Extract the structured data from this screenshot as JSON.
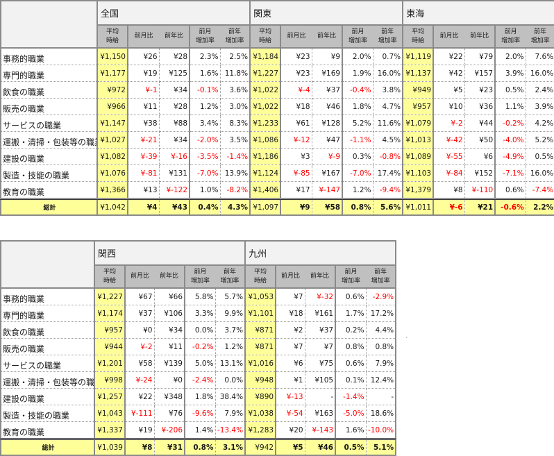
{
  "sub_headers": {
    "avg": "平均\n時給",
    "mom": "前月比",
    "yoy": "前年比",
    "mom_rate": "前月\n増加率",
    "yoy_rate": "前年\n増加率"
  },
  "row_labels": [
    "事務的職業",
    "専門的職業",
    "飲食の職業",
    "販売の職業",
    "サービスの職業",
    "運搬・清掃・包装等の職業",
    "建設の職業",
    "製造・技能の職業",
    "教育の職業"
  ],
  "total_label": "総計",
  "colors": {
    "highlight": "#ffff99",
    "negative": "#ff0000",
    "header_gray": "#c0c0c0",
    "region_bg": "#f2f2f2"
  },
  "table_top": {
    "regions": [
      {
        "name": "全国",
        "rows": [
          [
            "¥1,150",
            "¥26",
            "¥28",
            "2.3%",
            "2.5%"
          ],
          [
            "¥1,177",
            "¥19",
            "¥125",
            "1.6%",
            "11.8%"
          ],
          [
            "¥972",
            "¥-1",
            "¥34",
            "-0.1%",
            "3.6%"
          ],
          [
            "¥966",
            "¥11",
            "¥28",
            "1.2%",
            "3.0%"
          ],
          [
            "¥1,147",
            "¥38",
            "¥88",
            "3.4%",
            "8.3%"
          ],
          [
            "¥1,027",
            "¥-21",
            "¥34",
            "-2.0%",
            "3.5%"
          ],
          [
            "¥1,082",
            "¥-39",
            "¥-16",
            "-3.5%",
            "-1.4%"
          ],
          [
            "¥1,076",
            "¥-81",
            "¥131",
            "-7.0%",
            "13.9%"
          ],
          [
            "¥1,366",
            "¥13",
            "¥-122",
            "1.0%",
            "-8.2%"
          ]
        ],
        "total": [
          "¥1,042",
          "¥4",
          "¥43",
          "0.4%",
          "4.3%"
        ]
      },
      {
        "name": "関東",
        "rows": [
          [
            "¥1,184",
            "¥23",
            "¥9",
            "2.0%",
            "0.7%"
          ],
          [
            "¥1,227",
            "¥23",
            "¥169",
            "1.9%",
            "16.0%"
          ],
          [
            "¥1,022",
            "¥-4",
            "¥37",
            "-0.4%",
            "3.8%"
          ],
          [
            "¥1,022",
            "¥18",
            "¥46",
            "1.8%",
            "4.7%"
          ],
          [
            "¥1,233",
            "¥61",
            "¥128",
            "5.2%",
            "11.6%"
          ],
          [
            "¥1,086",
            "¥-12",
            "¥47",
            "-1.1%",
            "4.5%"
          ],
          [
            "¥1,186",
            "¥3",
            "¥-9",
            "0.3%",
            "-0.8%"
          ],
          [
            "¥1,124",
            "¥-85",
            "¥167",
            "-7.0%",
            "17.4%"
          ],
          [
            "¥1,406",
            "¥17",
            "¥-147",
            "1.2%",
            "-9.4%"
          ]
        ],
        "total": [
          "¥1,097",
          "¥9",
          "¥58",
          "0.8%",
          "5.6%"
        ]
      },
      {
        "name": "東海",
        "rows": [
          [
            "¥1,119",
            "¥22",
            "¥79",
            "2.0%",
            "7.6%"
          ],
          [
            "¥1,137",
            "¥42",
            "¥157",
            "3.9%",
            "16.0%"
          ],
          [
            "¥949",
            "¥5",
            "¥23",
            "0.5%",
            "2.4%"
          ],
          [
            "¥957",
            "¥10",
            "¥36",
            "1.1%",
            "3.9%"
          ],
          [
            "¥1,079",
            "¥-2",
            "¥44",
            "-0.2%",
            "4.2%"
          ],
          [
            "¥1,013",
            "¥-42",
            "¥50",
            "-4.0%",
            "5.2%"
          ],
          [
            "¥1,089",
            "¥-55",
            "¥6",
            "-4.9%",
            "0.5%"
          ],
          [
            "¥1,103",
            "¥-84",
            "¥152",
            "-7.1%",
            "16.0%"
          ],
          [
            "¥1,379",
            "¥8",
            "¥-110",
            "0.6%",
            "-7.4%"
          ]
        ],
        "total": [
          "¥1,011",
          "¥-6",
          "¥21",
          "-0.6%",
          "2.2%"
        ]
      }
    ]
  },
  "table_bottom": {
    "regions": [
      {
        "name": "関西",
        "rows": [
          [
            "¥1,227",
            "¥67",
            "¥66",
            "5.8%",
            "5.7%"
          ],
          [
            "¥1,174",
            "¥37",
            "¥106",
            "3.3%",
            "9.9%"
          ],
          [
            "¥957",
            "¥0",
            "¥34",
            "0.0%",
            "3.7%"
          ],
          [
            "¥944",
            "¥-2",
            "¥11",
            "-0.2%",
            "1.2%"
          ],
          [
            "¥1,201",
            "¥58",
            "¥139",
            "5.0%",
            "13.1%"
          ],
          [
            "¥998",
            "¥-24",
            "¥0",
            "-2.4%",
            "0.0%"
          ],
          [
            "¥1,257",
            "¥22",
            "¥348",
            "1.8%",
            "38.4%"
          ],
          [
            "¥1,043",
            "¥-111",
            "¥76",
            "-9.6%",
            "7.9%"
          ],
          [
            "¥1,337",
            "¥19",
            "¥-206",
            "1.4%",
            "-13.4%"
          ]
        ],
        "total": [
          "¥1,039",
          "¥8",
          "¥31",
          "0.8%",
          "3.1%"
        ]
      },
      {
        "name": "九州",
        "rows": [
          [
            "¥1,053",
            "¥7",
            "¥-32",
            "0.6%",
            "-2.9%"
          ],
          [
            "¥1,101",
            "¥18",
            "¥161",
            "1.7%",
            "17.2%"
          ],
          [
            "¥871",
            "¥2",
            "¥37",
            "0.2%",
            "4.4%"
          ],
          [
            "¥871",
            "¥7",
            "¥7",
            "0.8%",
            "0.8%"
          ],
          [
            "¥1,016",
            "¥6",
            "¥75",
            "0.6%",
            "7.9%"
          ],
          [
            "¥948",
            "¥1",
            "¥105",
            "0.1%",
            "12.4%"
          ],
          [
            "¥890",
            "¥-13",
            "-",
            "-1.4%",
            "-"
          ],
          [
            "¥1,038",
            "¥-54",
            "¥163",
            "-5.0%",
            "18.6%"
          ],
          [
            "¥1,283",
            "¥20",
            "¥-143",
            "1.6%",
            "-10.0%"
          ]
        ],
        "total": [
          "¥942",
          "¥5",
          "¥46",
          "0.5%",
          "5.1%"
        ]
      }
    ]
  },
  "stray_mark": "ˏ"
}
